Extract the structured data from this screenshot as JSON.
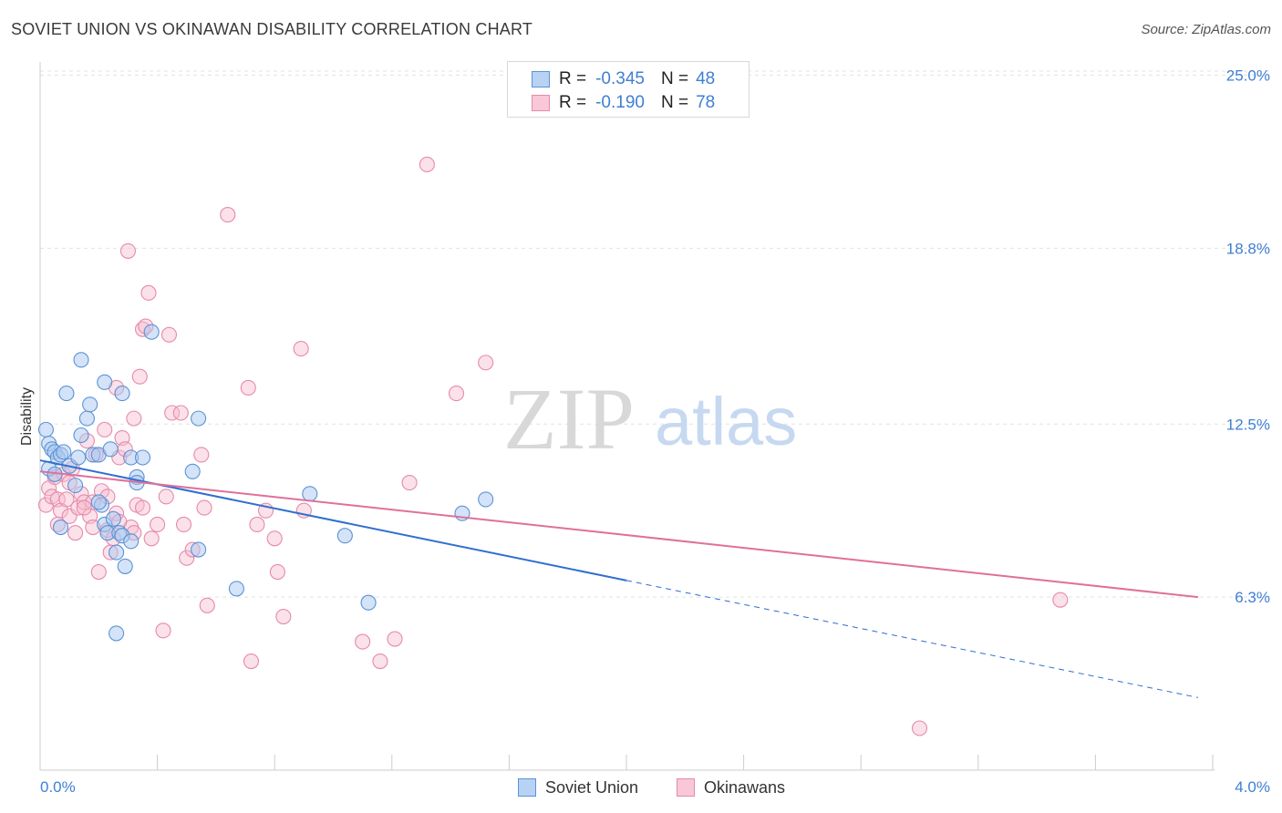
{
  "title": "SOVIET UNION VS OKINAWAN DISABILITY CORRELATION CHART",
  "source": "Source: ZipAtlas.com",
  "watermark": {
    "zip": "ZIP",
    "atlas": "atlas"
  },
  "legend": {
    "rows": [
      {
        "r_label": "R =",
        "r_value": "-0.345",
        "n_label": "N =",
        "n_value": "48"
      },
      {
        "r_label": "R =",
        "r_value": "-0.190",
        "n_label": "N =",
        "n_value": "78"
      }
    ]
  },
  "bottom_legend": {
    "series1": "Soviet Union",
    "series2": "Okinawans"
  },
  "colors": {
    "soviet_fill": "#a9c8f0",
    "soviet_stroke": "#5b93d6",
    "soviet_line": "#2f6fcf",
    "okinawan_fill": "#f7bcd0",
    "okinawan_stroke": "#e68aaa",
    "okinawan_line": "#e0709a",
    "tick_text": "#3f7fd3",
    "grid": "#e3e3e3"
  },
  "chart_data": {
    "type": "scatter",
    "title": "SOVIET UNION VS OKINAWAN DISABILITY CORRELATION CHART",
    "xlabel": "",
    "ylabel": "Disability",
    "xlim": [
      0.0,
      4.0
    ],
    "ylim": [
      0.0,
      25.0
    ],
    "x_tick_labels": [
      "0.0%",
      "4.0%"
    ],
    "y_tick_values": [
      6.3,
      12.5,
      18.8,
      25.0
    ],
    "y_tick_labels": [
      "6.3%",
      "12.5%",
      "18.8%",
      "25.0%"
    ],
    "grid": "horizontal dashed",
    "legend_position": "top-center",
    "series": [
      {
        "name": "Soviet Union",
        "R": -0.345,
        "N": 48,
        "trend": {
          "x_start": 0.0,
          "y_start": 11.2,
          "x_solid_end": 2.0,
          "x_end": 3.95,
          "y_end": 2.7
        },
        "points": [
          [
            0.02,
            12.3
          ],
          [
            0.03,
            11.8
          ],
          [
            0.04,
            11.6
          ],
          [
            0.05,
            11.5
          ],
          [
            0.06,
            11.3
          ],
          [
            0.03,
            10.9
          ],
          [
            0.05,
            10.7
          ],
          [
            0.07,
            11.4
          ],
          [
            0.08,
            11.5
          ],
          [
            0.09,
            13.6
          ],
          [
            0.1,
            11.0
          ],
          [
            0.12,
            10.3
          ],
          [
            0.13,
            11.3
          ],
          [
            0.14,
            12.1
          ],
          [
            0.16,
            12.7
          ],
          [
            0.17,
            13.2
          ],
          [
            0.18,
            11.4
          ],
          [
            0.2,
            11.4
          ],
          [
            0.21,
            9.6
          ],
          [
            0.22,
            8.9
          ],
          [
            0.23,
            8.6
          ],
          [
            0.2,
            9.7
          ],
          [
            0.22,
            14.0
          ],
          [
            0.24,
            11.6
          ],
          [
            0.25,
            9.1
          ],
          [
            0.26,
            7.9
          ],
          [
            0.27,
            8.6
          ],
          [
            0.28,
            13.6
          ],
          [
            0.28,
            8.5
          ],
          [
            0.29,
            7.4
          ],
          [
            0.31,
            8.3
          ],
          [
            0.31,
            11.3
          ],
          [
            0.33,
            10.6
          ],
          [
            0.33,
            10.4
          ],
          [
            0.35,
            11.3
          ],
          [
            0.38,
            15.8
          ],
          [
            0.14,
            14.8
          ],
          [
            0.26,
            5.0
          ],
          [
            0.52,
            10.8
          ],
          [
            0.54,
            12.7
          ],
          [
            0.54,
            8.0
          ],
          [
            0.67,
            6.6
          ],
          [
            0.92,
            10.0
          ],
          [
            1.04,
            8.5
          ],
          [
            1.12,
            6.1
          ],
          [
            1.44,
            9.3
          ],
          [
            1.52,
            9.8
          ],
          [
            0.07,
            8.8
          ]
        ]
      },
      {
        "name": "Okinawans",
        "R": -0.19,
        "N": 78,
        "trend": {
          "x_start": 0.0,
          "y_start": 10.8,
          "x_end": 3.95,
          "y_end": 6.3
        },
        "points": [
          [
            0.02,
            9.6
          ],
          [
            0.03,
            10.2
          ],
          [
            0.04,
            9.9
          ],
          [
            0.05,
            10.6
          ],
          [
            0.06,
            9.8
          ],
          [
            0.07,
            9.4
          ],
          [
            0.08,
            10.7
          ],
          [
            0.09,
            9.8
          ],
          [
            0.1,
            9.2
          ],
          [
            0.11,
            10.9
          ],
          [
            0.12,
            8.6
          ],
          [
            0.13,
            9.5
          ],
          [
            0.14,
            10.0
          ],
          [
            0.15,
            9.7
          ],
          [
            0.16,
            11.9
          ],
          [
            0.17,
            9.2
          ],
          [
            0.18,
            9.7
          ],
          [
            0.19,
            11.4
          ],
          [
            0.2,
            7.2
          ],
          [
            0.21,
            10.1
          ],
          [
            0.22,
            12.3
          ],
          [
            0.23,
            8.7
          ],
          [
            0.24,
            7.9
          ],
          [
            0.25,
            8.4
          ],
          [
            0.26,
            9.3
          ],
          [
            0.26,
            13.8
          ],
          [
            0.27,
            11.3
          ],
          [
            0.28,
            12.0
          ],
          [
            0.3,
            18.7
          ],
          [
            0.31,
            8.8
          ],
          [
            0.32,
            12.7
          ],
          [
            0.33,
            9.6
          ],
          [
            0.34,
            14.2
          ],
          [
            0.35,
            15.9
          ],
          [
            0.36,
            16.0
          ],
          [
            0.37,
            17.2
          ],
          [
            0.38,
            8.4
          ],
          [
            0.4,
            8.9
          ],
          [
            0.42,
            5.1
          ],
          [
            0.43,
            9.9
          ],
          [
            0.44,
            15.7
          ],
          [
            0.45,
            12.9
          ],
          [
            0.48,
            12.9
          ],
          [
            0.49,
            8.9
          ],
          [
            0.5,
            7.7
          ],
          [
            0.52,
            8.0
          ],
          [
            0.55,
            11.4
          ],
          [
            0.56,
            9.5
          ],
          [
            0.57,
            6.0
          ],
          [
            0.64,
            20.0
          ],
          [
            0.71,
            13.8
          ],
          [
            0.72,
            4.0
          ],
          [
            0.74,
            8.9
          ],
          [
            0.77,
            9.4
          ],
          [
            0.8,
            8.4
          ],
          [
            0.81,
            7.2
          ],
          [
            0.83,
            5.6
          ],
          [
            0.89,
            15.2
          ],
          [
            0.9,
            9.4
          ],
          [
            1.1,
            4.7
          ],
          [
            1.16,
            4.0
          ],
          [
            1.21,
            4.8
          ],
          [
            1.26,
            10.4
          ],
          [
            1.32,
            21.8
          ],
          [
            1.42,
            13.6
          ],
          [
            1.52,
            14.7
          ],
          [
            3.0,
            1.6
          ],
          [
            3.48,
            6.2
          ],
          [
            0.05,
            10.7
          ],
          [
            0.1,
            10.4
          ],
          [
            0.15,
            9.5
          ],
          [
            0.18,
            8.8
          ],
          [
            0.23,
            9.9
          ],
          [
            0.27,
            9.0
          ],
          [
            0.29,
            11.6
          ],
          [
            0.32,
            8.6
          ],
          [
            0.35,
            9.5
          ],
          [
            0.06,
            8.9
          ]
        ]
      }
    ]
  }
}
